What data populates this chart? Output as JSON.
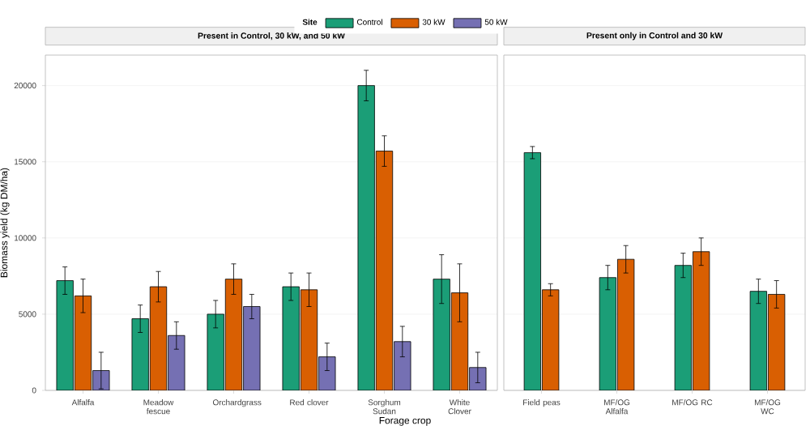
{
  "chart_data": [
    {
      "type": "bar",
      "title": "Present in Control, 30 kW, and 50 kW",
      "xlabel": "Forage crop",
      "ylabel": "Biomass yield (kg DM/ha)",
      "legend_title": "Site",
      "legend": "top",
      "grid": "y",
      "categories": [
        "Alfalfa",
        "Meadow fescue",
        "Orchardgrass",
        "Red clover",
        "Sorghum Sudan",
        "White Clover"
      ],
      "series": [
        {
          "name": "Control",
          "color": "#1b9e77",
          "values": [
            7200,
            4700,
            5000,
            6800,
            20000,
            7300
          ],
          "errors": [
            900,
            900,
            900,
            900,
            1000,
            1600
          ]
        },
        {
          "name": "30 kW",
          "color": "#d95f02",
          "values": [
            6200,
            6800,
            7300,
            6600,
            15700,
            6400
          ],
          "errors": [
            1100,
            1000,
            1000,
            1100,
            1000,
            1900
          ]
        },
        {
          "name": "50 kW",
          "color": "#7570b3",
          "values": [
            1300,
            3600,
            5500,
            2200,
            3200,
            1500
          ],
          "errors": [
            1200,
            900,
            800,
            900,
            1000,
            1000
          ]
        }
      ],
      "ylim": [
        0,
        22000
      ],
      "yticks": [
        0,
        5000,
        10000,
        15000,
        20000
      ]
    },
    {
      "type": "bar",
      "title": "Present only in Control and 30 kW",
      "grid": "y",
      "tick_labels": "x",
      "categories": [
        "Field peas",
        "MF/OG Alfalfa",
        "MF/OG RC",
        "MF/OG WC"
      ],
      "series": [
        {
          "color": "#1b9e77",
          "values": [
            15600,
            7400,
            8200,
            6500
          ],
          "errors": [
            400,
            800,
            800,
            800
          ]
        },
        {
          "color": "#d95f02",
          "values": [
            6600,
            8600,
            9100,
            6300
          ],
          "errors": [
            400,
            900,
            900,
            900
          ]
        }
      ],
      "ylim": [
        0,
        22000
      ],
      "yticks": [
        0,
        5000,
        10000,
        15000,
        20000
      ]
    }
  ]
}
